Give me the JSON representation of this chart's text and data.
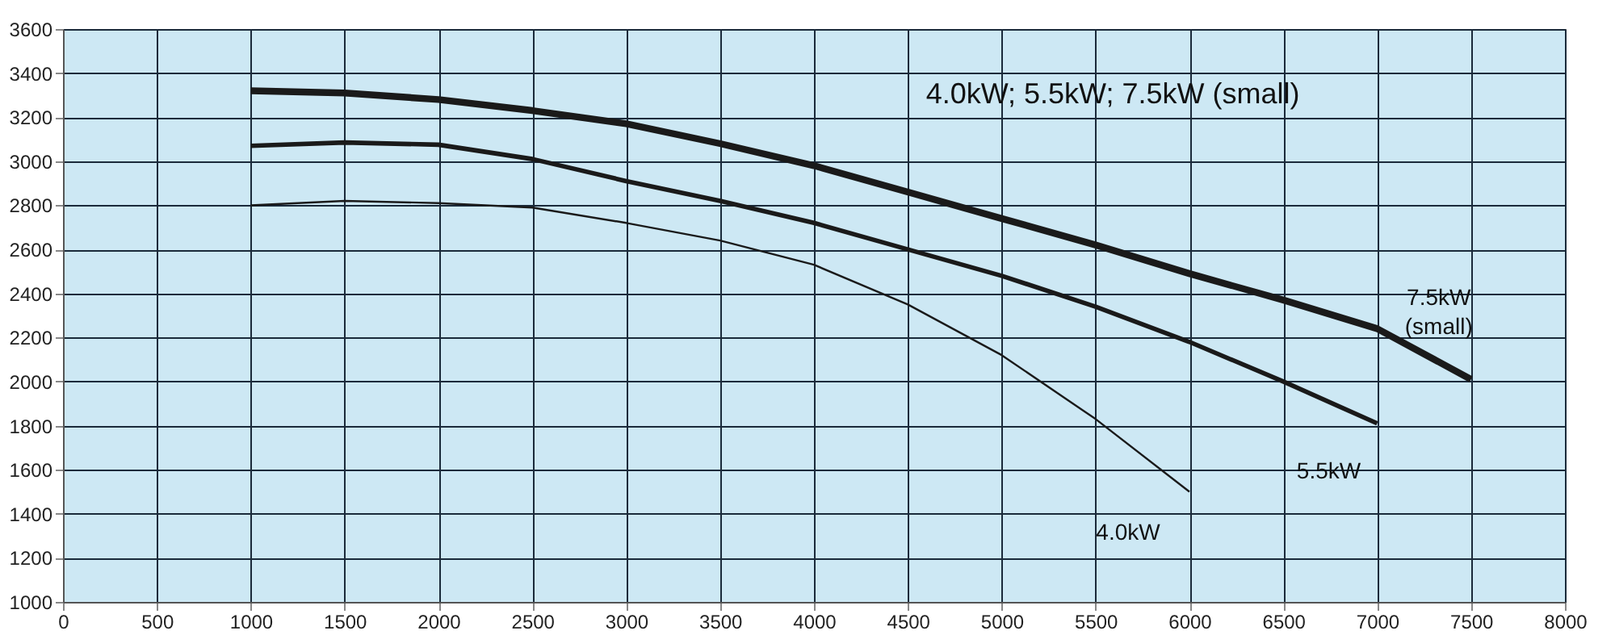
{
  "chart_data": {
    "type": "line",
    "xlim": [
      0,
      8000
    ],
    "xticks": [
      0,
      500,
      1000,
      1500,
      2000,
      2500,
      3000,
      3500,
      4000,
      4500,
      5000,
      5500,
      6000,
      6500,
      7000,
      7500,
      8000
    ],
    "ylim": [
      1000,
      3600
    ],
    "yticks": [
      1000,
      1200,
      1400,
      1600,
      1800,
      2000,
      2200,
      2400,
      2600,
      2800,
      3000,
      3200,
      3400,
      3600
    ],
    "grid": true,
    "marker": "none",
    "line_style": "solid",
    "series": [
      {
        "name": "4.0kW",
        "color": "#1a1a1a",
        "x": [
          1000,
          1500,
          2000,
          2500,
          3000,
          3500,
          4000,
          4500,
          5000,
          5500,
          6000
        ],
        "values": [
          2800,
          2820,
          2810,
          2790,
          2720,
          2640,
          2530,
          2350,
          2120,
          1830,
          1500
        ]
      },
      {
        "name": "5.5kW",
        "color": "#1a1a1a",
        "x": [
          1000,
          1500,
          2000,
          2500,
          3000,
          3500,
          4000,
          4500,
          5000,
          5500,
          6000,
          6500,
          7000
        ],
        "values": [
          3070,
          3085,
          3075,
          3010,
          2910,
          2820,
          2720,
          2600,
          2480,
          2340,
          2180,
          2000,
          1810
        ]
      },
      {
        "name": "7.5kW (small)",
        "color": "#1a1a1a",
        "x": [
          1000,
          1500,
          2000,
          2500,
          3000,
          3500,
          4000,
          4500,
          5000,
          5500,
          6000,
          6500,
          7000,
          7500
        ],
        "values": [
          3320,
          3310,
          3280,
          3230,
          3170,
          3080,
          2980,
          2860,
          2740,
          2620,
          2490,
          2370,
          2240,
          2010
        ]
      }
    ],
    "annotations": [
      "4.0kW; 5.5kW; 7.5kW (small)"
    ]
  }
}
